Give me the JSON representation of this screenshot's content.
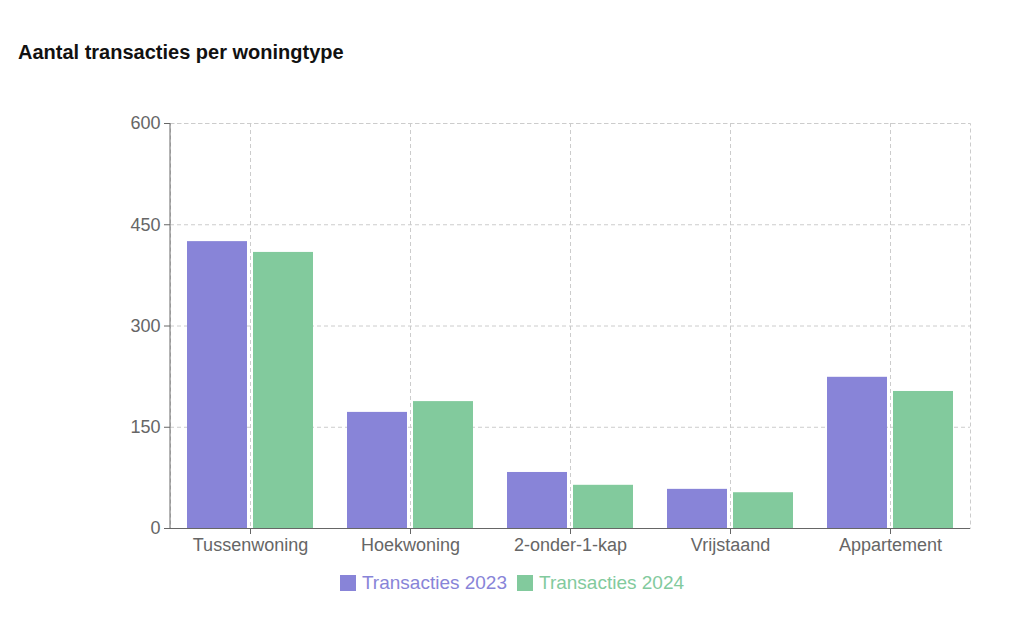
{
  "chart_data": {
    "type": "bar",
    "title": "Aantal transacties per woningtype",
    "categories": [
      "Tussenwoning",
      "Hoekwoning",
      "2-onder-1-kap",
      "Vrijstaand",
      "Appartement"
    ],
    "series": [
      {
        "name": "Transacties 2023",
        "color": "#8884d8",
        "values": [
          425,
          172,
          83,
          58,
          224
        ]
      },
      {
        "name": "Transacties 2024",
        "color": "#82ca9d",
        "values": [
          409,
          188,
          64,
          53,
          203
        ]
      }
    ],
    "ylim": [
      0,
      600
    ],
    "yticks": [
      0,
      150,
      300,
      450,
      600
    ],
    "grid": true,
    "legend": "bottom"
  }
}
